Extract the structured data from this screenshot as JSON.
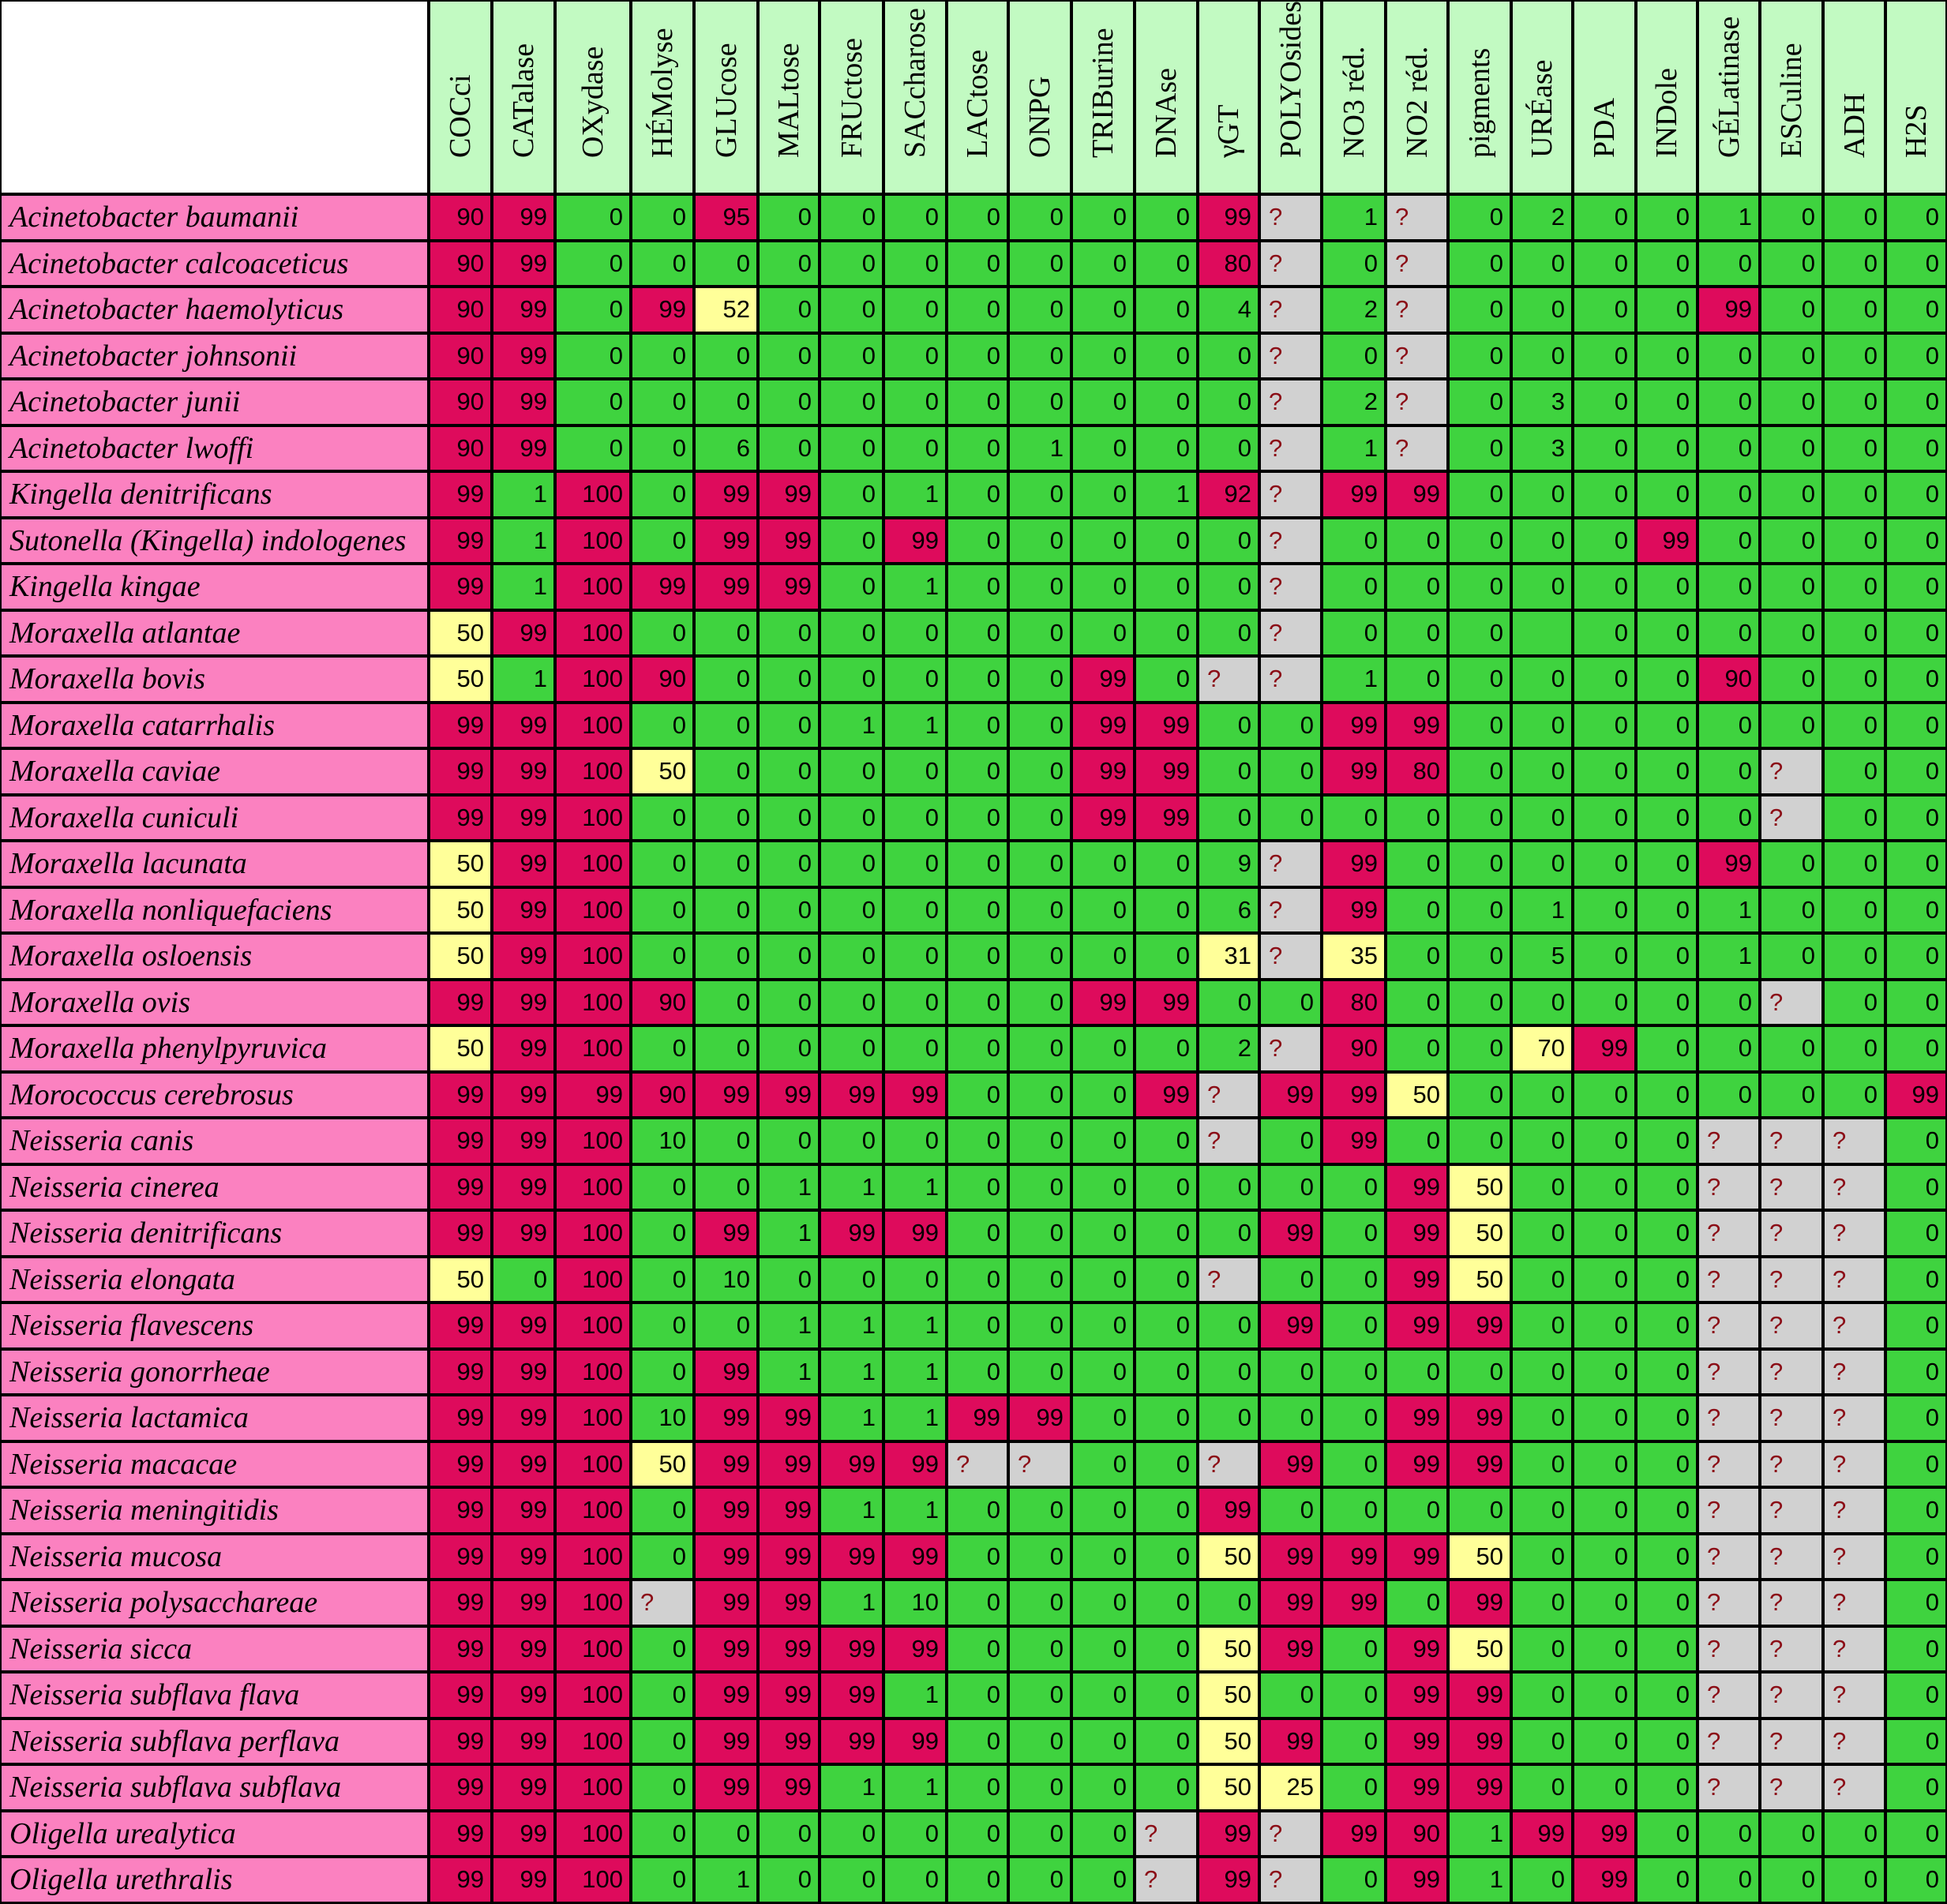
{
  "table": {
    "columns": [
      "COCci",
      "CATalase",
      "OXydase",
      "HÉMolyse",
      "GLUcose",
      "MALtose",
      "FRUctose",
      "SACcharose",
      "LACtose",
      "ONPG",
      "TRIBurine",
      "DNAse",
      "γGT",
      "POLYOsides",
      "NO3 réd.",
      "NO2 réd.",
      "pigments",
      "URÉase",
      "PDA",
      "INDole",
      "GÉLatinase",
      "ESCuline",
      "ADH",
      "H2S"
    ],
    "rows": [
      {
        "name": "Acinetobacter baumanii",
        "values": [
          "90",
          "99",
          "0",
          "0",
          "95",
          "0",
          "0",
          "0",
          "0",
          "0",
          "0",
          "0",
          "99",
          "?",
          "1",
          "?",
          "0",
          "2",
          "0",
          "0",
          "1",
          "0",
          "0",
          "0"
        ]
      },
      {
        "name": "Acinetobacter calcoaceticus",
        "values": [
          "90",
          "99",
          "0",
          "0",
          "0",
          "0",
          "0",
          "0",
          "0",
          "0",
          "0",
          "0",
          "80",
          "?",
          "0",
          "?",
          "0",
          "0",
          "0",
          "0",
          "0",
          "0",
          "0",
          "0"
        ]
      },
      {
        "name": "Acinetobacter haemolyticus",
        "values": [
          "90",
          "99",
          "0",
          "99",
          "52",
          "0",
          "0",
          "0",
          "0",
          "0",
          "0",
          "0",
          "4",
          "?",
          "2",
          "?",
          "0",
          "0",
          "0",
          "0",
          "99",
          "0",
          "0",
          "0"
        ]
      },
      {
        "name": "Acinetobacter johnsonii",
        "values": [
          "90",
          "99",
          "0",
          "0",
          "0",
          "0",
          "0",
          "0",
          "0",
          "0",
          "0",
          "0",
          "0",
          "?",
          "0",
          "?",
          "0",
          "0",
          "0",
          "0",
          "0",
          "0",
          "0",
          "0"
        ]
      },
      {
        "name": "Acinetobacter junii",
        "values": [
          "90",
          "99",
          "0",
          "0",
          "0",
          "0",
          "0",
          "0",
          "0",
          "0",
          "0",
          "0",
          "0",
          "?",
          "2",
          "?",
          "0",
          "3",
          "0",
          "0",
          "0",
          "0",
          "0",
          "0"
        ]
      },
      {
        "name": "Acinetobacter lwoffi",
        "values": [
          "90",
          "99",
          "0",
          "0",
          "6",
          "0",
          "0",
          "0",
          "0",
          "1",
          "0",
          "0",
          "0",
          "?",
          "1",
          "?",
          "0",
          "3",
          "0",
          "0",
          "0",
          "0",
          "0",
          "0"
        ]
      },
      {
        "name": "Kingella denitrificans",
        "values": [
          "99",
          "1",
          "100",
          "0",
          "99",
          "99",
          "0",
          "1",
          "0",
          "0",
          "0",
          "1",
          "92",
          "?",
          "99",
          "99",
          "0",
          "0",
          "0",
          "0",
          "0",
          "0",
          "0",
          "0"
        ]
      },
      {
        "name": "Sutonella (Kingella) indologenes",
        "values": [
          "99",
          "1",
          "100",
          "0",
          "99",
          "99",
          "0",
          "99",
          "0",
          "0",
          "0",
          "0",
          "0",
          "?",
          "0",
          "0",
          "0",
          "0",
          "0",
          "99",
          "0",
          "0",
          "0",
          "0"
        ]
      },
      {
        "name": "Kingella kingae",
        "values": [
          "99",
          "1",
          "100",
          "99",
          "99",
          "99",
          "0",
          "1",
          "0",
          "0",
          "0",
          "0",
          "0",
          "?",
          "0",
          "0",
          "0",
          "0",
          "0",
          "0",
          "0",
          "0",
          "0",
          "0"
        ]
      },
      {
        "name": "Moraxella atlantae",
        "values": [
          "50",
          "99",
          "100",
          "0",
          "0",
          "0",
          "0",
          "0",
          "0",
          "0",
          "0",
          "0",
          "0",
          "?",
          "0",
          "0",
          "0",
          "",
          "0",
          "0",
          "0",
          "0",
          "0",
          "0"
        ]
      },
      {
        "name": "Moraxella bovis",
        "values": [
          "50",
          "1",
          "100",
          "90",
          "0",
          "0",
          "0",
          "0",
          "0",
          "0",
          "99",
          "0",
          "?",
          "?",
          "1",
          "0",
          "0",
          "0",
          "0",
          "0",
          "90",
          "0",
          "0",
          "0"
        ]
      },
      {
        "name": "Moraxella catarrhalis",
        "values": [
          "99",
          "99",
          "100",
          "0",
          "0",
          "0",
          "1",
          "1",
          "0",
          "0",
          "99",
          "99",
          "0",
          "0",
          "99",
          "99",
          "0",
          "0",
          "0",
          "0",
          "0",
          "0",
          "0",
          "0"
        ]
      },
      {
        "name": "Moraxella caviae",
        "values": [
          "99",
          "99",
          "100",
          "50",
          "0",
          "0",
          "0",
          "0",
          "0",
          "0",
          "99",
          "99",
          "0",
          "0",
          "99",
          "80",
          "0",
          "0",
          "0",
          "0",
          "0",
          "?",
          "0",
          "0"
        ]
      },
      {
        "name": "Moraxella cuniculi",
        "values": [
          "99",
          "99",
          "100",
          "0",
          "0",
          "0",
          "0",
          "0",
          "0",
          "0",
          "99",
          "99",
          "0",
          "0",
          "0",
          "0",
          "0",
          "0",
          "0",
          "0",
          "0",
          "?",
          "0",
          "0"
        ]
      },
      {
        "name": "Moraxella lacunata",
        "values": [
          "50",
          "99",
          "100",
          "0",
          "0",
          "0",
          "0",
          "0",
          "0",
          "0",
          "0",
          "0",
          "9",
          "?",
          "99",
          "0",
          "0",
          "0",
          "0",
          "0",
          "99",
          "0",
          "0",
          "0"
        ]
      },
      {
        "name": "Moraxella nonliquefaciens",
        "values": [
          "50",
          "99",
          "100",
          "0",
          "0",
          "0",
          "0",
          "0",
          "0",
          "0",
          "0",
          "0",
          "6",
          "?",
          "99",
          "0",
          "0",
          "1",
          "0",
          "0",
          "1",
          "0",
          "0",
          "0"
        ]
      },
      {
        "name": "Moraxella osloensis",
        "values": [
          "50",
          "99",
          "100",
          "0",
          "0",
          "0",
          "0",
          "0",
          "0",
          "0",
          "0",
          "0",
          "31",
          "?",
          "35",
          "0",
          "0",
          "5",
          "0",
          "0",
          "1",
          "0",
          "0",
          "0"
        ]
      },
      {
        "name": "Moraxella ovis",
        "values": [
          "99",
          "99",
          "100",
          "90",
          "0",
          "0",
          "0",
          "0",
          "0",
          "0",
          "99",
          "99",
          "0",
          "0",
          "80",
          "0",
          "0",
          "0",
          "0",
          "0",
          "0",
          "?",
          "0",
          "0"
        ]
      },
      {
        "name": "Moraxella phenylpyruvica",
        "values": [
          "50",
          "99",
          "100",
          "0",
          "0",
          "0",
          "0",
          "0",
          "0",
          "0",
          "0",
          "0",
          "2",
          "?",
          "90",
          "0",
          "0",
          "70",
          "99",
          "0",
          "0",
          "0",
          "0",
          "0"
        ]
      },
      {
        "name": "Morococcus cerebrosus",
        "values": [
          "99",
          "99",
          "99",
          "90",
          "99",
          "99",
          "99",
          "99",
          "0",
          "0",
          "0",
          "99",
          "?",
          "99",
          "99",
          "50",
          "0",
          "0",
          "0",
          "0",
          "0",
          "0",
          "0",
          "99"
        ]
      },
      {
        "name": "Neisseria canis",
        "values": [
          "99",
          "99",
          "100",
          "10",
          "0",
          "0",
          "0",
          "0",
          "0",
          "0",
          "0",
          "0",
          "?",
          "0",
          "99",
          "0",
          "0",
          "0",
          "0",
          "0",
          "?",
          "?",
          "?",
          "0"
        ]
      },
      {
        "name": "Neisseria cinerea",
        "values": [
          "99",
          "99",
          "100",
          "0",
          "0",
          "1",
          "1",
          "1",
          "0",
          "0",
          "0",
          "0",
          "0",
          "0",
          "0",
          "99",
          "50",
          "0",
          "0",
          "0",
          "?",
          "?",
          "?",
          "0"
        ]
      },
      {
        "name": "Neisseria denitrificans",
        "values": [
          "99",
          "99",
          "100",
          "0",
          "99",
          "1",
          "99",
          "99",
          "0",
          "0",
          "0",
          "0",
          "0",
          "99",
          "0",
          "99",
          "50",
          "0",
          "0",
          "0",
          "?",
          "?",
          "?",
          "0"
        ]
      },
      {
        "name": "Neisseria elongata",
        "values": [
          "50",
          "0",
          "100",
          "0",
          "10",
          "0",
          "0",
          "0",
          "0",
          "0",
          "0",
          "0",
          "?",
          "0",
          "0",
          "99",
          "50",
          "0",
          "0",
          "0",
          "?",
          "?",
          "?",
          "0"
        ]
      },
      {
        "name": "Neisseria flavescens",
        "values": [
          "99",
          "99",
          "100",
          "0",
          "0",
          "1",
          "1",
          "1",
          "0",
          "0",
          "0",
          "0",
          "0",
          "99",
          "0",
          "99",
          "99",
          "0",
          "0",
          "0",
          "?",
          "?",
          "?",
          "0"
        ]
      },
      {
        "name": "Neisseria gonorrheae",
        "values": [
          "99",
          "99",
          "100",
          "0",
          "99",
          "1",
          "1",
          "1",
          "0",
          "0",
          "0",
          "0",
          "0",
          "0",
          "0",
          "0",
          "0",
          "0",
          "0",
          "0",
          "?",
          "?",
          "?",
          "0"
        ]
      },
      {
        "name": "Neisseria lactamica",
        "values": [
          "99",
          "99",
          "100",
          "10",
          "99",
          "99",
          "1",
          "1",
          "99",
          "99",
          "0",
          "0",
          "0",
          "0",
          "0",
          "99",
          "99",
          "0",
          "0",
          "0",
          "?",
          "?",
          "?",
          "0"
        ]
      },
      {
        "name": "Neisseria macacae",
        "values": [
          "99",
          "99",
          "100",
          "50",
          "99",
          "99",
          "99",
          "99",
          "?",
          "?",
          "0",
          "0",
          "?",
          "99",
          "0",
          "99",
          "99",
          "0",
          "0",
          "0",
          "?",
          "?",
          "?",
          "0"
        ]
      },
      {
        "name": "Neisseria meningitidis",
        "values": [
          "99",
          "99",
          "100",
          "0",
          "99",
          "99",
          "1",
          "1",
          "0",
          "0",
          "0",
          "0",
          "99",
          "0",
          "0",
          "0",
          "0",
          "0",
          "0",
          "0",
          "?",
          "?",
          "?",
          "0"
        ]
      },
      {
        "name": "Neisseria mucosa",
        "values": [
          "99",
          "99",
          "100",
          "0",
          "99",
          "99",
          "99",
          "99",
          "0",
          "0",
          "0",
          "0",
          "50",
          "99",
          "99",
          "99",
          "50",
          "0",
          "0",
          "0",
          "?",
          "?",
          "?",
          "0"
        ]
      },
      {
        "name": "Neisseria polysacchareae",
        "values": [
          "99",
          "99",
          "100",
          "?",
          "99",
          "99",
          "1",
          "10",
          "0",
          "0",
          "0",
          "0",
          "0",
          "99",
          "99",
          "0",
          "99",
          "0",
          "0",
          "0",
          "?",
          "?",
          "?",
          "0"
        ]
      },
      {
        "name": "Neisseria sicca",
        "values": [
          "99",
          "99",
          "100",
          "0",
          "99",
          "99",
          "99",
          "99",
          "0",
          "0",
          "0",
          "0",
          "50",
          "99",
          "0",
          "99",
          "50",
          "0",
          "0",
          "0",
          "?",
          "?",
          "?",
          "0"
        ]
      },
      {
        "name": "Neisseria subflava flava",
        "values": [
          "99",
          "99",
          "100",
          "0",
          "99",
          "99",
          "99",
          "1",
          "0",
          "0",
          "0",
          "0",
          "50",
          "0",
          "0",
          "99",
          "99",
          "0",
          "0",
          "0",
          "?",
          "?",
          "?",
          "0"
        ]
      },
      {
        "name": "Neisseria subflava perflava",
        "values": [
          "99",
          "99",
          "100",
          "0",
          "99",
          "99",
          "99",
          "99",
          "0",
          "0",
          "0",
          "0",
          "50",
          "99",
          "0",
          "99",
          "99",
          "0",
          "0",
          "0",
          "?",
          "?",
          "?",
          "0"
        ]
      },
      {
        "name": "Neisseria subflava subflava",
        "values": [
          "99",
          "99",
          "100",
          "0",
          "99",
          "99",
          "1",
          "1",
          "0",
          "0",
          "0",
          "0",
          "50",
          "25",
          "0",
          "99",
          "99",
          "0",
          "0",
          "0",
          "?",
          "?",
          "?",
          "0"
        ]
      },
      {
        "name": "Oligella urealytica",
        "values": [
          "99",
          "99",
          "100",
          "0",
          "0",
          "0",
          "0",
          "0",
          "0",
          "0",
          "0",
          "?",
          "99",
          "?",
          "99",
          "90",
          "1",
          "99",
          "99",
          "0",
          "0",
          "0",
          "0",
          "0"
        ]
      },
      {
        "name": "Oligella urethralis",
        "values": [
          "99",
          "99",
          "100",
          "0",
          "1",
          "0",
          "0",
          "0",
          "0",
          "0",
          "0",
          "?",
          "99",
          "?",
          "0",
          "99",
          "1",
          "0",
          "99",
          "0",
          "0",
          "0",
          "0",
          "0"
        ]
      }
    ]
  },
  "colors": {
    "positive": "#de0b5c",
    "negative": "#3fd33f",
    "variable": "#ffff99",
    "unknown": "#d1d1d1",
    "header": "#c2fac2",
    "species": "#fb81c0"
  }
}
